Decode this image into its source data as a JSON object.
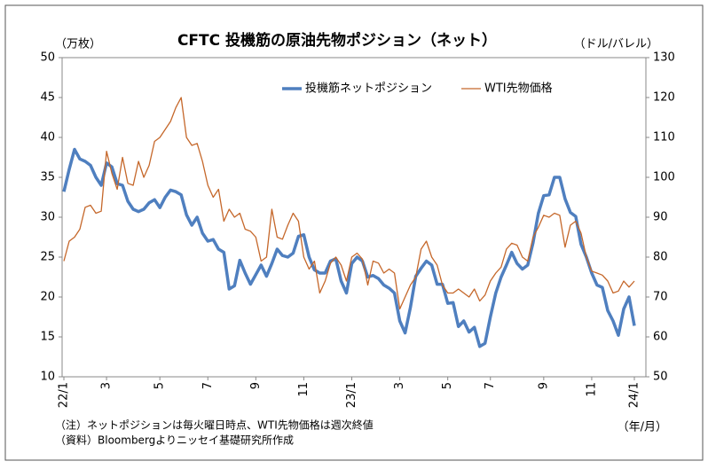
{
  "chart_data": {
    "type": "line",
    "title": "CFTC 投機筋の原油先物ポジション（ネット）",
    "y_label": "（万枚）",
    "y2_label": "（ドル/バレル）",
    "x_label": "（年/月）",
    "notes": [
      "（注）ネットポジションは毎火曜日時点、WTI先物価格は週次終値",
      "（資料）Bloombergよりニッセイ基礎研究所作成"
    ],
    "categories": [
      "22/1",
      null,
      null,
      null,
      null,
      null,
      null,
      null,
      "3",
      null,
      null,
      null,
      null,
      null,
      null,
      null,
      null,
      null,
      "5",
      null,
      null,
      null,
      null,
      null,
      null,
      null,
      null,
      "7",
      null,
      null,
      null,
      null,
      null,
      null,
      null,
      null,
      "9",
      null,
      null,
      null,
      null,
      null,
      null,
      null,
      null,
      "11",
      null,
      null,
      null,
      null,
      null,
      null,
      null,
      null,
      "23/1",
      null,
      null,
      null,
      null,
      null,
      null,
      null,
      null,
      "3",
      null,
      null,
      null,
      null,
      null,
      null,
      null,
      null,
      "5",
      null,
      null,
      null,
      null,
      null,
      null,
      null,
      "7",
      null,
      null,
      null,
      null,
      null,
      null,
      null,
      null,
      null,
      "9",
      null,
      null,
      null,
      null,
      null,
      null,
      null,
      null,
      "11",
      null,
      null,
      null,
      null,
      null,
      null,
      null,
      "24/1"
    ],
    "series": [
      {
        "name": "投機筋ネットポジション",
        "color": "#4f7fbf",
        "values": [
          33.2,
          36,
          38.5,
          37.3,
          37,
          36.5,
          35,
          34,
          36.8,
          36.3,
          34.2,
          34,
          32,
          31,
          30.7,
          31,
          31.8,
          32.2,
          31.2,
          32.5,
          33.4,
          33.2,
          32.8,
          30.3,
          29,
          30,
          28,
          27,
          27.2,
          26,
          25.6,
          21,
          21.4,
          24.6,
          23,
          21.6,
          22.8,
          24,
          22.6,
          24.2,
          26,
          25.2,
          25,
          25.5,
          27.6,
          27.8,
          25,
          23.4,
          23,
          23,
          24.5,
          24.8,
          22,
          20.5,
          24.2,
          25,
          24.5,
          22.5,
          22.7,
          22.3,
          21.5,
          21.1,
          20.5,
          17,
          15.5,
          18.7,
          22.6,
          23.6,
          24.5,
          24,
          21.6,
          21.6,
          19.2,
          19.3,
          16.3,
          17,
          15.6,
          16.2,
          13.8,
          14.2,
          17.5,
          20.5,
          22.5,
          24,
          25.6,
          24.2,
          23.5,
          24,
          26.8,
          30.5,
          32.7,
          32.8,
          35,
          35,
          32.3,
          30.6,
          30.1,
          26.6,
          25,
          23,
          21.5,
          21.2,
          18.3,
          17,
          15.2,
          18.5,
          20,
          16.4
        ]
      },
      {
        "name": "WTI先物価格",
        "color": "#c5672a",
        "axis": "y2",
        "values": [
          79,
          84,
          85,
          87,
          92.5,
          93,
          91,
          91.5,
          106.5,
          101,
          97,
          105,
          98.5,
          98,
          104,
          100,
          103,
          109,
          110,
          112,
          114,
          117.5,
          120,
          110,
          108,
          108.5,
          104,
          98,
          95,
          97,
          89,
          92,
          90,
          91,
          87,
          86.5,
          85,
          79,
          80,
          92,
          85,
          84.5,
          88,
          91,
          89,
          80,
          77,
          79,
          71,
          74,
          78.5,
          80,
          78,
          74,
          80,
          81,
          79.5,
          73,
          79,
          78.5,
          76,
          77,
          76,
          67,
          70,
          73,
          75,
          82,
          84,
          80,
          78,
          73,
          71,
          71,
          72,
          71,
          70,
          72,
          69,
          70.5,
          74,
          76,
          77.5,
          82,
          83.5,
          83,
          80,
          79,
          85,
          87.5,
          90.5,
          90,
          91,
          90.5,
          82.5,
          88,
          89,
          86,
          80,
          76.5,
          76,
          75.5,
          74,
          71,
          71.5,
          74,
          72.5,
          74
        ]
      }
    ],
    "ylim": [
      10,
      50
    ],
    "yticks": [
      10,
      15,
      20,
      25,
      30,
      35,
      40,
      45,
      50
    ],
    "y2lim": [
      50,
      130
    ],
    "y2ticks": [
      50,
      60,
      70,
      80,
      90,
      100,
      110,
      120,
      130
    ],
    "grid": false,
    "legend": "top"
  }
}
